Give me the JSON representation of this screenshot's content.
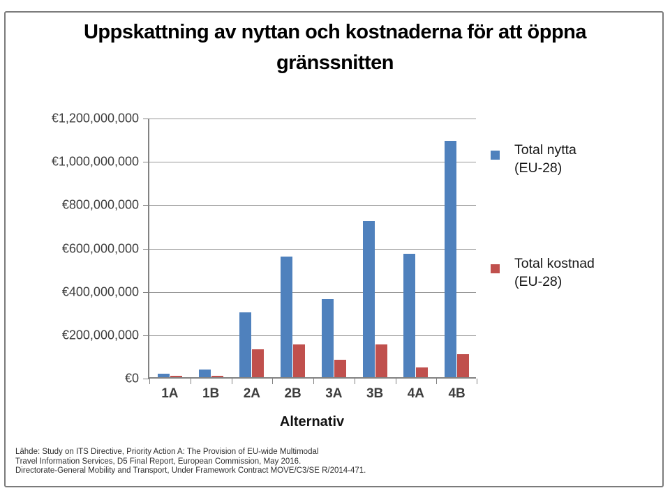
{
  "slide": {
    "title_line1": "Uppskattning av nyttan och kostnaderna för att öppna",
    "title_line2": "gränssnitten"
  },
  "chart_data": {
    "type": "bar",
    "title": "Uppskattning av nyttan och kostnaderna för att öppna gränssnitten",
    "categories": [
      "1A",
      "1B",
      "2A",
      "2B",
      "3A",
      "3B",
      "4A",
      "4B"
    ],
    "series": [
      {
        "name": "Total nytta (EU-28)",
        "color": "#4F81BD",
        "values": [
          15000000,
          35000000,
          300000000,
          555000000,
          360000000,
          720000000,
          570000000,
          1090000000
        ]
      },
      {
        "name": "Total kostnad (EU-28)",
        "color": "#C0504D",
        "values": [
          8000000,
          8000000,
          130000000,
          150000000,
          80000000,
          150000000,
          45000000,
          105000000
        ]
      }
    ],
    "xlabel": "Alternativ",
    "ylabel": "",
    "ylim": [
      0,
      1200000000
    ],
    "y_tick_labels": [
      "€1,200,000,000",
      "€1,000,000,000",
      "€800,000,000",
      "€600,000,000",
      "€400,000,000",
      "€200,000,000",
      "€0"
    ],
    "grid": true,
    "legend_position": "right",
    "legend": [
      {
        "label": "Total nytta\n(EU-28)",
        "color": "#4F81BD"
      },
      {
        "label": "Total kostnad\n(EU-28)",
        "color": "#C0504D"
      }
    ]
  },
  "source": {
    "lines": [
      "Lähde: Study on ITS Directive, Priority Action A: The Provision of EU-wide Multimodal",
      "Travel Information Services, D5 Final Report, European Commission, May 2016.",
      "Directorate-General Mobility and Transport, Under Framework Contract MOVE/C3/SE R/2014-471."
    ]
  },
  "colors": {
    "benefit": "#4F81BD",
    "cost": "#C0504D",
    "axis": "#828282",
    "gridline": "#979797"
  }
}
